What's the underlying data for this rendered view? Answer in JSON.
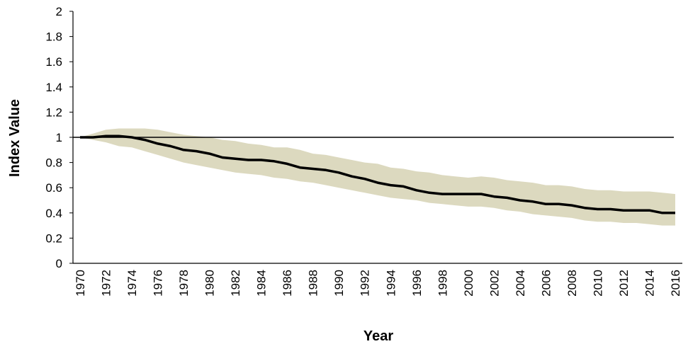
{
  "chart_data": {
    "type": "line",
    "title": "",
    "xlabel": "Year",
    "ylabel": "Index Value",
    "xlim": [
      1970,
      2016
    ],
    "ylim": [
      0,
      2
    ],
    "yticks": [
      "0",
      "0.2",
      "0.4",
      "0.6",
      "0.8",
      "1",
      "1.2",
      "1.4",
      "1.6",
      "1.8",
      "2"
    ],
    "xticks": [
      "1970",
      "1972",
      "1974",
      "1976",
      "1978",
      "1980",
      "1982",
      "1984",
      "1986",
      "1988",
      "1990",
      "1992",
      "1994",
      "1996",
      "1998",
      "2000",
      "2002",
      "2004",
      "2006",
      "2008",
      "2010",
      "2012",
      "2014",
      "2016"
    ],
    "reference_line": 1,
    "grid": false,
    "legend": "none",
    "colors": {
      "index_line": "#000000",
      "confidence_band": "#dcd9bf",
      "reference_line": "#000000"
    },
    "series": [
      {
        "x": [
          1970,
          1971,
          1972,
          1973,
          1974,
          1975,
          1976,
          1977,
          1978,
          1979,
          1980,
          1981,
          1982,
          1983,
          1984,
          1985,
          1986,
          1987,
          1988,
          1989,
          1990,
          1991,
          1992,
          1993,
          1994,
          1995,
          1996,
          1997,
          1998,
          1999,
          2000,
          2001,
          2002,
          2003,
          2004,
          2005,
          2006,
          2007,
          2008,
          2009,
          2010,
          2011,
          2012,
          2013,
          2014,
          2015,
          2016
        ],
        "values": [
          1.0,
          1.0,
          1.01,
          1.01,
          1.0,
          0.98,
          0.95,
          0.93,
          0.9,
          0.89,
          0.87,
          0.84,
          0.83,
          0.82,
          0.82,
          0.81,
          0.79,
          0.76,
          0.75,
          0.74,
          0.72,
          0.69,
          0.67,
          0.64,
          0.62,
          0.61,
          0.58,
          0.56,
          0.55,
          0.55,
          0.55,
          0.55,
          0.53,
          0.52,
          0.5,
          0.49,
          0.47,
          0.47,
          0.46,
          0.44,
          0.43,
          0.43,
          0.42,
          0.42,
          0.42,
          0.4,
          0.4
        ],
        "upper": [
          1.0,
          1.03,
          1.06,
          1.07,
          1.07,
          1.07,
          1.06,
          1.04,
          1.02,
          1.01,
          1.0,
          0.98,
          0.97,
          0.95,
          0.94,
          0.92,
          0.92,
          0.9,
          0.87,
          0.86,
          0.84,
          0.82,
          0.8,
          0.79,
          0.76,
          0.75,
          0.73,
          0.72,
          0.7,
          0.69,
          0.68,
          0.69,
          0.68,
          0.66,
          0.65,
          0.64,
          0.62,
          0.62,
          0.61,
          0.59,
          0.58,
          0.58,
          0.57,
          0.57,
          0.57,
          0.56,
          0.55
        ],
        "lower": [
          1.0,
          0.98,
          0.96,
          0.93,
          0.92,
          0.89,
          0.86,
          0.83,
          0.8,
          0.78,
          0.76,
          0.74,
          0.72,
          0.71,
          0.7,
          0.68,
          0.67,
          0.65,
          0.64,
          0.62,
          0.6,
          0.58,
          0.56,
          0.54,
          0.52,
          0.51,
          0.5,
          0.48,
          0.47,
          0.46,
          0.45,
          0.45,
          0.44,
          0.42,
          0.41,
          0.39,
          0.38,
          0.37,
          0.36,
          0.34,
          0.33,
          0.33,
          0.32,
          0.32,
          0.31,
          0.3,
          0.3
        ]
      }
    ]
  }
}
